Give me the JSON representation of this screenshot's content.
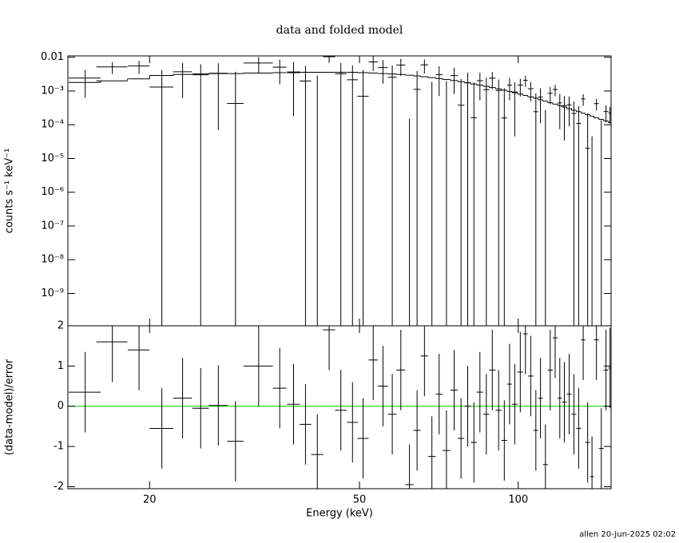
{
  "chart_data": [
    {
      "type": "spectrum",
      "title": "data and folded model",
      "ylabel": "counts s⁻¹ keV⁻¹",
      "log_x": true,
      "log_y": true,
      "xlim": [
        14,
        150
      ],
      "ylim": [
        1.1e-10,
        0.011
      ],
      "xticks": [
        20,
        50,
        100
      ],
      "yticks": [
        {
          "value": 0.01,
          "label": "0.01"
        },
        {
          "value": 0.001,
          "label": "10⁻³"
        },
        {
          "value": 0.0001,
          "label": "10⁻⁴"
        },
        {
          "value": 1e-05,
          "label": "10⁻⁵"
        },
        {
          "value": 1e-06,
          "label": "10⁻⁶"
        },
        {
          "value": 1e-07,
          "label": "10⁻⁷"
        },
        {
          "value": 1e-08,
          "label": "10⁻⁸"
        },
        {
          "value": 1e-09,
          "label": "10⁻⁹"
        }
      ],
      "color": "#000000",
      "model_color": "#000000",
      "x": [
        15.1,
        17.0,
        19.1,
        21.1,
        23.1,
        25.0,
        27.0,
        29.1,
        32.2,
        35.3,
        37.5,
        39.5,
        41.6,
        43.8,
        46.1,
        48.5,
        50.8,
        53.1,
        55.4,
        57.7,
        59.9,
        62.2,
        64.3,
        66.4,
        68.6,
        70.8,
        73.1,
        75.6,
        77.9,
        80.2,
        82.4,
        84.6,
        87.0,
        89.3,
        91.8,
        94.1,
        96.3,
        98.5,
        100.9,
        103.2,
        105.6,
        108.0,
        110.2,
        112.6,
        115.0,
        117.5,
        119.9,
        122.3,
        124.9,
        127.5,
        130.2,
        132.8,
        135.4,
        138.0,
        140.7,
        143.7,
        146.7,
        149.3
      ],
      "xerr": [
        1.05,
        1.15,
        0.9,
        1.1,
        0.95,
        0.9,
        1.1,
        1.05,
        2.05,
        1.05,
        1.05,
        1.0,
        1.1,
        1.15,
        1.15,
        1.15,
        1.25,
        1.05,
        1.2,
        1.1,
        1.15,
        1.1,
        1.0,
        1.1,
        1.15,
        1.05,
        1.25,
        1.2,
        1.15,
        1.1,
        1.1,
        1.15,
        1.15,
        1.25,
        1.2,
        1.15,
        1.0,
        1.2,
        1.25,
        1.05,
        1.3,
        1.1,
        1.15,
        1.2,
        1.25,
        1.25,
        1.1,
        1.3,
        1.3,
        1.35,
        1.35,
        1.2,
        1.4,
        1.2,
        1.5,
        1.5,
        1.55,
        1.05
      ],
      "values": [
        0.00243,
        0.0052,
        0.00552,
        0.00131,
        0.00372,
        0.00304,
        0.00337,
        0.00043,
        0.0068,
        0.00508,
        0.00368,
        0.00198,
        -0.00072,
        0.0104,
        0.00324,
        0.00216,
        0.0007,
        0.00731,
        0.00495,
        0.00256,
        0.00589,
        -0.0028,
        0.00112,
        0.00596,
        -0.000625,
        0.00306,
        -0.00022,
        0.00287,
        0.00038,
        0.00175,
        0.000162,
        0.00203,
        0.0011,
        0.00241,
        0.00104,
        0.000159,
        0.0015,
        0.000935,
        0.0015,
        0.00207,
        0.00117,
        0.000244,
        0.00066,
        -0.000225,
        0.000855,
        0.00111,
        0.000444,
        0.000369,
        0.00039,
        0.000216,
        0.00011,
        0.000583,
        2e-05,
        -0.000135,
        0.000424,
        -7e-06,
        0.000247,
        0.000224
      ],
      "errors": [
        0.0018,
        0.002,
        0.0023,
        0.0029,
        0.0031,
        0.0032,
        0.0033,
        0.0033,
        0.0034,
        0.0035,
        0.0035,
        0.0036,
        0.0036,
        0.0036,
        0.0036,
        0.0036,
        0.0035,
        0.0034,
        0.0033,
        0.0032,
        0.0031,
        0.00295,
        0.0028,
        0.00265,
        0.0025,
        0.00235,
        0.0022,
        0.00205,
        0.0019,
        0.00175,
        0.00162,
        0.0015,
        0.00138,
        0.00127,
        0.00116,
        0.00106,
        0.00097,
        0.00089,
        0.00081,
        0.00074,
        0.00067,
        0.00061,
        0.00055,
        0.0005,
        0.00045,
        0.00041,
        0.00037,
        0.000335,
        0.0003,
        0.00027,
        0.000245,
        0.00022,
        0.0002,
        0.00018,
        0.00016,
        0.000145,
        0.00013,
        0.000115
      ],
      "model": [
        0.0018,
        0.002,
        0.0023,
        0.0029,
        0.0031,
        0.0032,
        0.0033,
        0.0033,
        0.0034,
        0.0035,
        0.0035,
        0.0036,
        0.0036,
        0.0036,
        0.0036,
        0.0036,
        0.0035,
        0.0034,
        0.0033,
        0.0032,
        0.0031,
        0.00295,
        0.0028,
        0.00265,
        0.0025,
        0.00235,
        0.0022,
        0.00205,
        0.0019,
        0.00175,
        0.00162,
        0.0015,
        0.00138,
        0.00127,
        0.00116,
        0.00106,
        0.00097,
        0.00089,
        0.00081,
        0.00074,
        0.00067,
        0.00061,
        0.00055,
        0.0005,
        0.00045,
        0.00041,
        0.00037,
        0.000335,
        0.0003,
        0.00027,
        0.000245,
        0.00022,
        0.0002,
        0.00018,
        0.00016,
        0.000145,
        0.00013,
        0.000115
      ]
    },
    {
      "type": "residual",
      "xlabel": "Energy (keV)",
      "ylabel": "(data-model)/error",
      "log_x": true,
      "log_y": false,
      "xlim": [
        14,
        150
      ],
      "ylim": [
        -2.05,
        2
      ],
      "xticks": [
        20,
        50,
        100
      ],
      "yticks": [
        -2,
        -1,
        0,
        1,
        2
      ],
      "color": "#000000",
      "reference": 0,
      "reference_color": "#00cc00",
      "x": [
        15.1,
        17.0,
        19.1,
        21.1,
        23.1,
        25.0,
        27.0,
        29.1,
        32.2,
        35.3,
        37.5,
        39.5,
        41.6,
        43.8,
        46.1,
        48.5,
        50.8,
        53.1,
        55.4,
        57.7,
        59.9,
        62.2,
        64.3,
        66.4,
        68.6,
        70.8,
        73.1,
        75.6,
        77.9,
        80.2,
        82.4,
        84.6,
        87.0,
        89.3,
        91.8,
        94.1,
        96.3,
        98.5,
        100.9,
        103.2,
        105.6,
        108.0,
        110.2,
        112.6,
        115.0,
        117.5,
        119.9,
        122.3,
        124.9,
        127.5,
        130.2,
        132.8,
        135.4,
        138.0,
        140.7,
        143.7,
        146.7,
        149.3
      ],
      "xerr": [
        1.05,
        1.15,
        0.9,
        1.1,
        0.95,
        0.9,
        1.1,
        1.05,
        2.05,
        1.05,
        1.05,
        1.0,
        1.1,
        1.15,
        1.15,
        1.15,
        1.25,
        1.05,
        1.2,
        1.1,
        1.15,
        1.1,
        1.0,
        1.1,
        1.15,
        1.05,
        1.25,
        1.2,
        1.15,
        1.1,
        1.1,
        1.15,
        1.15,
        1.25,
        1.2,
        1.15,
        1.0,
        1.2,
        1.25,
        1.05,
        1.3,
        1.1,
        1.15,
        1.2,
        1.25,
        1.25,
        1.1,
        1.3,
        1.3,
        1.35,
        1.35,
        1.2,
        1.4,
        1.2,
        1.5,
        1.5,
        1.55,
        1.05
      ],
      "values": [
        0.35,
        1.6,
        1.4,
        -0.55,
        0.2,
        -0.05,
        0.02,
        -0.87,
        1.0,
        0.45,
        0.05,
        -0.45,
        -1.2,
        1.9,
        -0.1,
        -0.4,
        -0.8,
        1.15,
        0.5,
        -0.2,
        0.9,
        -1.95,
        -0.6,
        1.25,
        -1.25,
        0.3,
        -1.1,
        0.4,
        -0.8,
        0,
        -0.9,
        0.35,
        -0.2,
        0.9,
        -0.1,
        -0.85,
        0.55,
        0.05,
        0.85,
        1.8,
        0.75,
        -0.6,
        0.2,
        -1.45,
        0.9,
        1.7,
        0.2,
        0.1,
        0.3,
        -0.2,
        -0.55,
        1.65,
        -0.9,
        -1.75,
        1.65,
        -1.05,
        0.9,
        0.95
      ],
      "errors": [
        1,
        1,
        1,
        1,
        1,
        1,
        1,
        1,
        1,
        1,
        1,
        1,
        1,
        1,
        1,
        1,
        1,
        1,
        1,
        1,
        1,
        1,
        1,
        1,
        1,
        1,
        1,
        1,
        1,
        1,
        1,
        1,
        1,
        1,
        1,
        1,
        1,
        1,
        1,
        1,
        1,
        1,
        1,
        1,
        1,
        1,
        1,
        1,
        1,
        1,
        1,
        1,
        1,
        1,
        1,
        1,
        1,
        1
      ]
    }
  ],
  "footer": "allen 20-Jun-2025 02:02"
}
